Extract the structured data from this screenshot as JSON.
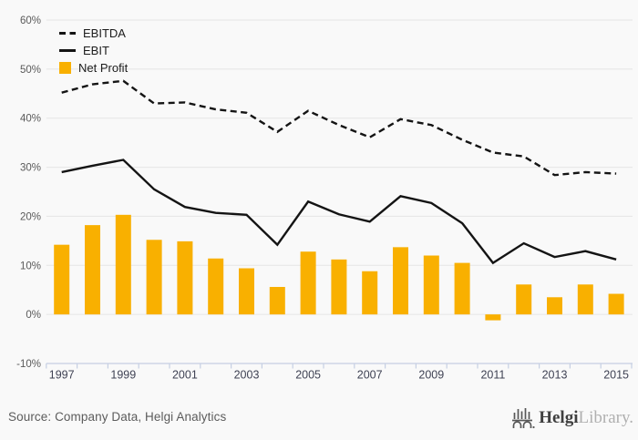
{
  "chart_data": {
    "type": "combo",
    "title": "",
    "x": [
      1997,
      1998,
      1999,
      2000,
      2001,
      2002,
      2003,
      2004,
      2005,
      2006,
      2007,
      2008,
      2009,
      2010,
      2011,
      2012,
      2013,
      2014,
      2015
    ],
    "series": [
      {
        "name": "EBITDA",
        "type": "line",
        "line_style": "dashed",
        "values": [
          45.2,
          46.9,
          47.6,
          43.0,
          43.2,
          41.8,
          41.1,
          37.2,
          41.5,
          38.6,
          36.1,
          39.8,
          38.6,
          35.6,
          33.0,
          32.2,
          28.4,
          29.0,
          28.7
        ]
      },
      {
        "name": "EBIT",
        "type": "line",
        "line_style": "solid",
        "values": [
          29.0,
          30.3,
          31.5,
          25.5,
          21.9,
          20.7,
          20.3,
          14.2,
          23.0,
          20.4,
          18.9,
          24.1,
          22.7,
          18.6,
          10.5,
          14.5,
          11.7,
          12.9,
          11.2
        ]
      },
      {
        "name": "Net Profit",
        "type": "bar",
        "values": [
          14.2,
          18.2,
          20.3,
          15.2,
          14.9,
          11.4,
          9.4,
          5.6,
          12.8,
          11.2,
          8.8,
          13.7,
          12.0,
          10.5,
          -1.2,
          6.1,
          3.5,
          6.1,
          4.2
        ]
      }
    ],
    "ylim": [
      -10,
      60
    ],
    "yticks": [
      60,
      50,
      40,
      30,
      20,
      10,
      0,
      -10
    ],
    "ytick_labels": [
      "60%",
      "50%",
      "40%",
      "30%",
      "20%",
      "10%",
      "0%",
      "-10%"
    ],
    "xtick_labels": [
      "1997",
      "1999",
      "2001",
      "2003",
      "2005",
      "2007",
      "2009",
      "2011",
      "2013",
      "2015"
    ],
    "grid": "horizontal",
    "legend_position": "top-left"
  },
  "colors": {
    "bar": "#F9B000",
    "line": "#141414",
    "grid": "#e5e5e5",
    "axis": "#c6cfe3",
    "background": "#f9f9f9",
    "tick_label": "#5a5a5a",
    "year_label": "#3f4254"
  },
  "footer": {
    "source_label": "Source: Company Data, Helgi Analytics",
    "logo": {
      "brand_primary": "Helgi",
      "brand_secondary": "Library."
    }
  }
}
